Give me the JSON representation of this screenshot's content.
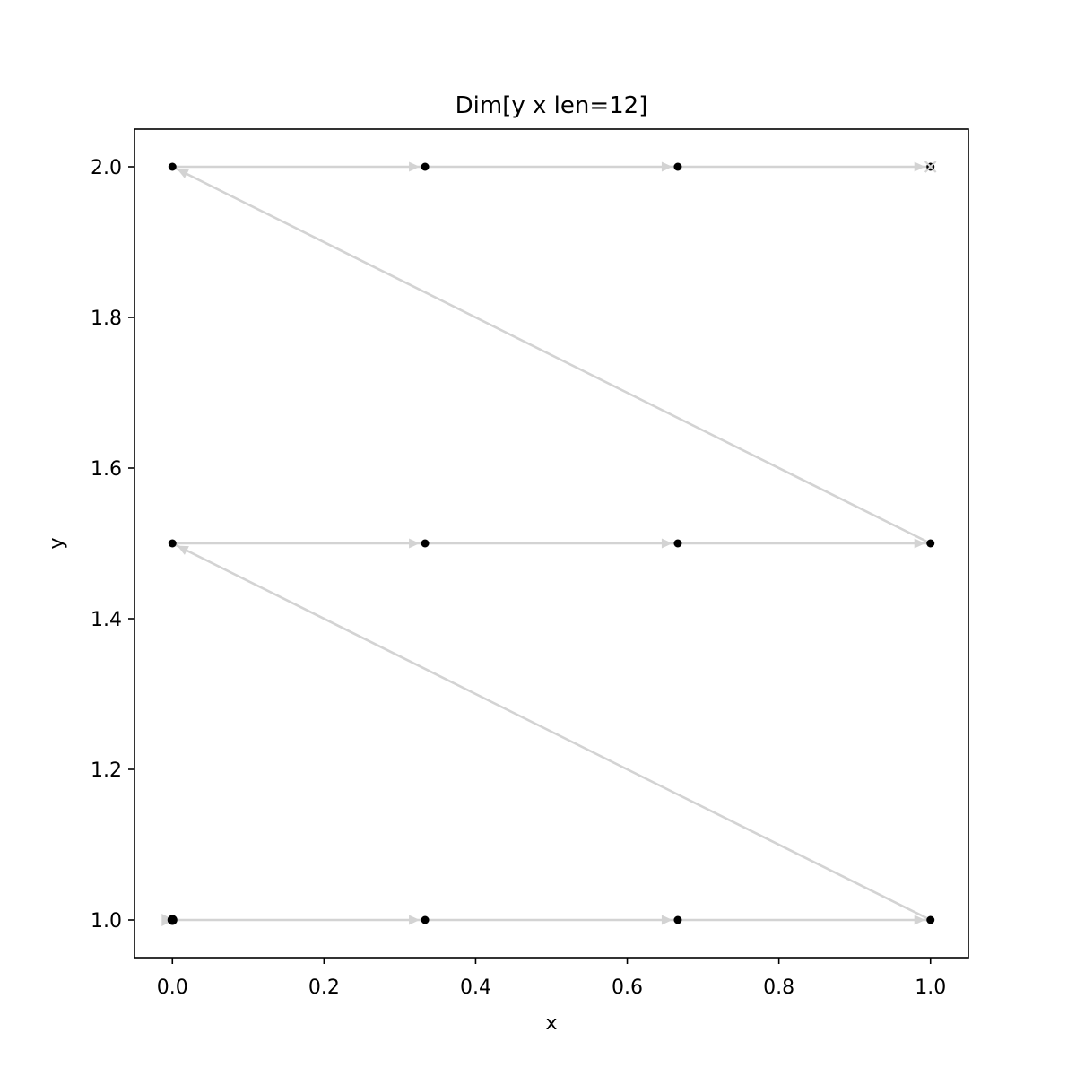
{
  "chart_data": {
    "type": "line",
    "title": "Dim[y x len=12]",
    "xlabel": "x",
    "ylabel": "y",
    "xlim": [
      -0.05,
      1.05
    ],
    "ylim": [
      0.95,
      2.05
    ],
    "xticks": [
      "0.0",
      "0.2",
      "0.4",
      "0.6",
      "0.8",
      "1.0"
    ],
    "yticks": [
      "1.0",
      "1.2",
      "1.4",
      "1.6",
      "1.8",
      "2.0"
    ],
    "grid": false,
    "legend": "none",
    "series": [
      {
        "x": [
          0,
          0.3333,
          0.6667,
          1,
          0,
          0.3333,
          0.6667,
          1,
          0,
          0.3333,
          0.6667,
          1
        ],
        "y": [
          1,
          1,
          1,
          1,
          1.5,
          1.5,
          1.5,
          1.5,
          2,
          2,
          2,
          2
        ]
      }
    ],
    "colors": {
      "path": "#d3d3d3",
      "points": "#000000",
      "frame": "#000000"
    },
    "markers": {
      "start": "triangle-right",
      "end": "x-cross"
    }
  }
}
